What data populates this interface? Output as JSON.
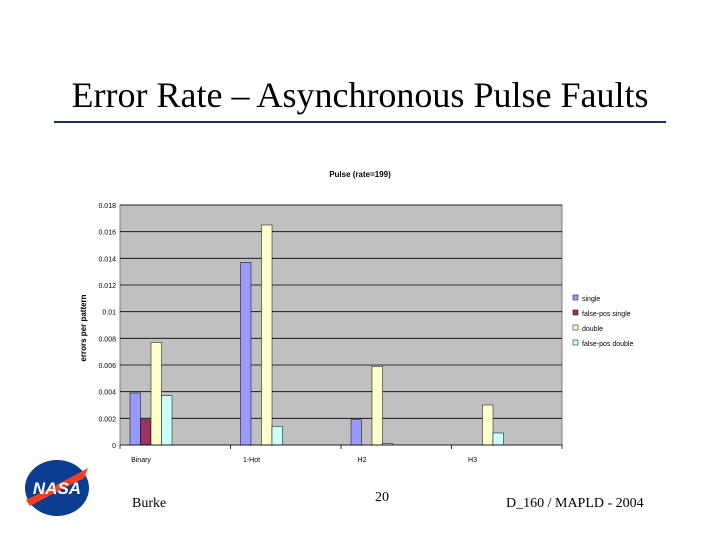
{
  "slide": {
    "title": "Error Rate – Asynchronous Pulse Faults",
    "footer_left": "Burke",
    "page_number": "20",
    "footer_right": "D_160 / MAPLD - 2004"
  },
  "logo": {
    "text": "NASA",
    "colors": {
      "globe": "#0b3d91",
      "chevron": "#fc3d21",
      "text": "#ffffff"
    }
  },
  "colors": {
    "plot_background": "#c0c0c0",
    "single": "#9999ff",
    "false_pos_single": "#993366",
    "double": "#ffffcc",
    "false_pos_double": "#ccffff",
    "title_rule": "#1f2d5c"
  },
  "chart_data": {
    "type": "bar",
    "title": "Pulse (rate=199)",
    "xlabel": "",
    "ylabel": "errors per pattern",
    "categories": [
      "Binary",
      "1-Hot",
      "H2",
      "H3"
    ],
    "series": [
      {
        "name": "single",
        "values": [
          0.0039,
          0.0137,
          0.0019,
          0
        ]
      },
      {
        "name": "false-pos single",
        "values": [
          0.0019,
          0,
          0,
          0
        ]
      },
      {
        "name": "double",
        "values": [
          0.0077,
          0.0165,
          0.0059,
          0.003
        ]
      },
      {
        "name": "false-pos double",
        "values": [
          0.0037,
          0.0014,
          0.0001,
          0.0009
        ]
      }
    ],
    "ylim": [
      0,
      0.018
    ],
    "yticks": [
      "0",
      "0.002",
      "0.004",
      "0.006",
      "0.008",
      "0.01",
      "0.012",
      "0.014",
      "0.016",
      "0.018"
    ],
    "grid": "horizontal major lines",
    "legend_position": "right"
  }
}
